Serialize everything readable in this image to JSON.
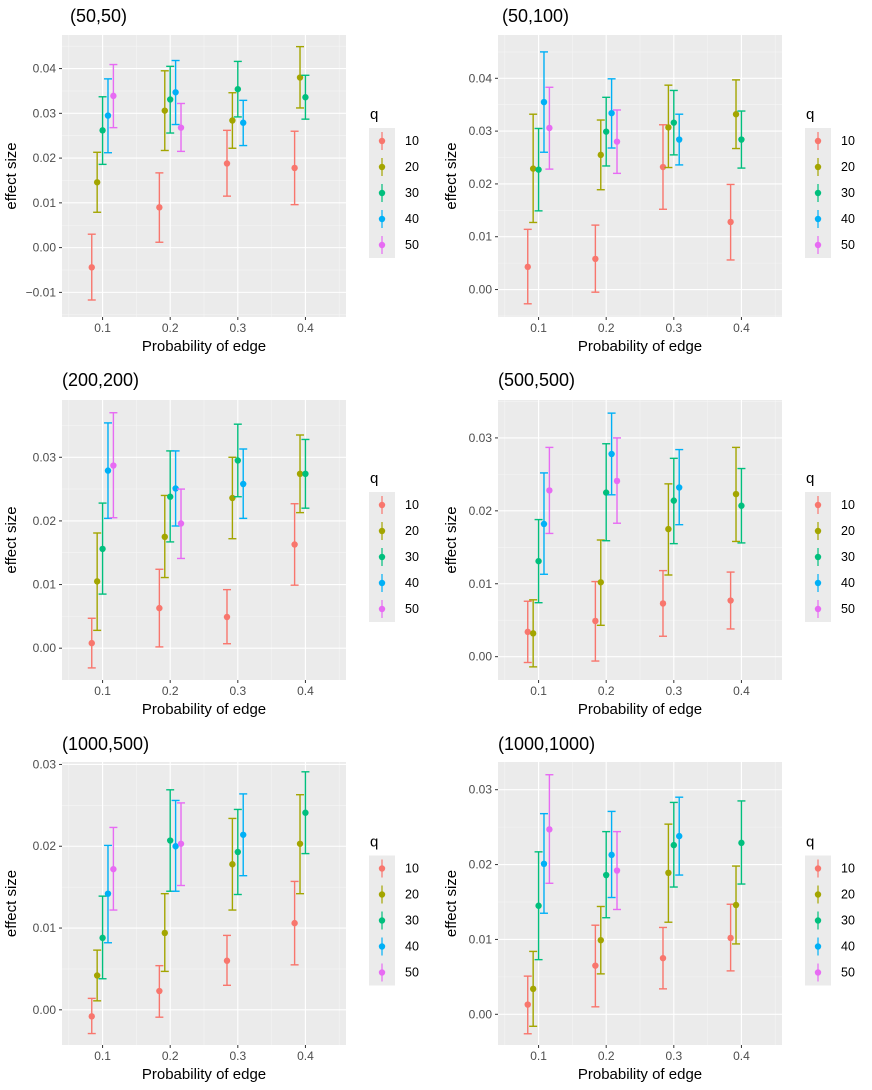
{
  "chart_data": [
    {
      "type": "errorbar-dot",
      "title": "(50,50)",
      "xlabel": "Probability of edge",
      "ylabel": "effect size",
      "x_ticks": [
        0.1,
        0.2,
        0.3,
        0.4
      ],
      "x_tick_labels": [
        "0.1",
        "0.2",
        "0.3",
        "0.4"
      ],
      "xlim": [
        0.04,
        0.46
      ],
      "ylim": [
        -0.0155,
        0.0475
      ],
      "y_ticks": [
        -0.01,
        0.0,
        0.01,
        0.02,
        0.03,
        0.04
      ],
      "y_tick_labels": [
        "−0.01",
        "0.00",
        "0.01",
        "0.02",
        "0.03",
        "0.04"
      ],
      "legend_title": "q",
      "legend_labels": [
        "10",
        "20",
        "30",
        "40",
        "50"
      ],
      "series": [
        {
          "name": "10",
          "color": "#F8766D",
          "x": [
            0.1,
            0.2,
            0.3,
            0.4
          ],
          "y": [
            -0.0044,
            0.009,
            0.0188,
            0.0178
          ],
          "lower": [
            -0.0117,
            0.0012,
            0.0115,
            0.0096
          ],
          "upper": [
            0.003,
            0.0167,
            0.0262,
            0.026
          ]
        },
        {
          "name": "20",
          "color": "#A3A500",
          "x": [
            0.1,
            0.2,
            0.3,
            0.4
          ],
          "y": [
            0.0146,
            0.0306,
            0.0284,
            0.038
          ],
          "lower": [
            0.0079,
            0.0217,
            0.0222,
            0.0312
          ],
          "upper": [
            0.0213,
            0.0395,
            0.0346,
            0.0449
          ]
        },
        {
          "name": "30",
          "color": "#00BF7D",
          "x": [
            0.1,
            0.2,
            0.3,
            0.4
          ],
          "y": [
            0.0262,
            0.0331,
            0.0354,
            0.0336
          ],
          "lower": [
            0.0186,
            0.0256,
            0.0292,
            0.0287
          ],
          "upper": [
            0.0337,
            0.0405,
            0.0416,
            0.0385
          ]
        },
        {
          "name": "40",
          "color": "#00B0F6",
          "x": [
            0.1,
            0.2,
            0.3,
            0.4
          ],
          "y": [
            0.0295,
            0.0347,
            0.0279,
            null
          ],
          "lower": [
            0.0212,
            0.0275,
            0.0228,
            null
          ],
          "upper": [
            0.0377,
            0.0418,
            0.0329,
            null
          ]
        },
        {
          "name": "50",
          "color": "#E76BF3",
          "x": [
            0.1,
            0.2,
            0.3,
            0.4
          ],
          "y": [
            0.0339,
            0.0268,
            null,
            null
          ],
          "lower": [
            0.0268,
            0.0215,
            null,
            null
          ],
          "upper": [
            0.0409,
            0.0322,
            null,
            null
          ]
        }
      ]
    },
    {
      "type": "errorbar-dot",
      "title": "(50,100)",
      "xlabel": "Probability of edge",
      "ylabel": "effect size",
      "x_ticks": [
        0.1,
        0.2,
        0.3,
        0.4
      ],
      "x_tick_labels": [
        "0.1",
        "0.2",
        "0.3",
        "0.4"
      ],
      "xlim": [
        0.04,
        0.46
      ],
      "ylim": [
        -0.0052,
        0.0482
      ],
      "y_ticks": [
        0.0,
        0.01,
        0.02,
        0.03,
        0.04
      ],
      "y_tick_labels": [
        "0.00",
        "0.01",
        "0.02",
        "0.03",
        "0.04"
      ],
      "legend_title": "q",
      "legend_labels": [
        "10",
        "20",
        "30",
        "40",
        "50"
      ],
      "series": [
        {
          "name": "10",
          "color": "#F8766D",
          "x": [
            0.1,
            0.2,
            0.3,
            0.4
          ],
          "y": [
            0.0043,
            0.0058,
            0.0232,
            0.0128
          ],
          "lower": [
            -0.0027,
            -0.0005,
            0.0152,
            0.0056
          ],
          "upper": [
            0.0114,
            0.0122,
            0.0312,
            0.0199
          ]
        },
        {
          "name": "20",
          "color": "#A3A500",
          "x": [
            0.1,
            0.2,
            0.3,
            0.4
          ],
          "y": [
            0.0229,
            0.0255,
            0.0307,
            0.0332
          ],
          "lower": [
            0.0127,
            0.0189,
            0.0231,
            0.0267
          ],
          "upper": [
            0.0332,
            0.0321,
            0.0387,
            0.0397
          ]
        },
        {
          "name": "30",
          "color": "#00BF7D",
          "x": [
            0.1,
            0.2,
            0.3,
            0.4
          ],
          "y": [
            0.0227,
            0.0299,
            0.0316,
            0.0284
          ],
          "lower": [
            0.0149,
            0.0234,
            0.0255,
            0.023
          ],
          "upper": [
            0.0305,
            0.0364,
            0.0377,
            0.0338
          ]
        },
        {
          "name": "40",
          "color": "#00B0F6",
          "x": [
            0.1,
            0.2,
            0.3,
            0.4
          ],
          "y": [
            0.0355,
            0.0334,
            0.0284,
            null
          ],
          "lower": [
            0.026,
            0.0268,
            0.0236,
            null
          ],
          "upper": [
            0.045,
            0.0399,
            0.0332,
            null
          ]
        },
        {
          "name": "50",
          "color": "#E76BF3",
          "x": [
            0.1,
            0.2,
            0.3,
            0.4
          ],
          "y": [
            0.0306,
            0.028,
            null,
            null
          ],
          "lower": [
            0.0228,
            0.022,
            null,
            null
          ],
          "upper": [
            0.0383,
            0.034,
            null,
            null
          ]
        }
      ]
    },
    {
      "type": "errorbar-dot",
      "title": "(200,200)",
      "xlabel": "Probability of edge",
      "ylabel": "effect size",
      "x_ticks": [
        0.1,
        0.2,
        0.3,
        0.4
      ],
      "x_tick_labels": [
        "0.1",
        "0.2",
        "0.3",
        "0.4"
      ],
      "xlim": [
        0.04,
        0.46
      ],
      "ylim": [
        -0.005,
        0.039
      ],
      "y_ticks": [
        0.0,
        0.01,
        0.02,
        0.03
      ],
      "y_tick_labels": [
        "0.00",
        "0.01",
        "0.02",
        "0.03"
      ],
      "legend_title": "q",
      "legend_labels": [
        "10",
        "20",
        "30",
        "40",
        "50"
      ],
      "series": [
        {
          "name": "10",
          "color": "#F8766D",
          "x": [
            0.1,
            0.2,
            0.3,
            0.4
          ],
          "y": [
            0.0008,
            0.0063,
            0.0049,
            0.0163
          ],
          "lower": [
            -0.0031,
            0.0002,
            0.0007,
            0.0099
          ],
          "upper": [
            0.0047,
            0.0124,
            0.0092,
            0.0227
          ]
        },
        {
          "name": "20",
          "color": "#A3A500",
          "x": [
            0.1,
            0.2,
            0.3,
            0.4
          ],
          "y": [
            0.0105,
            0.0175,
            0.0236,
            0.0274
          ],
          "lower": [
            0.0028,
            0.0111,
            0.0172,
            0.0213
          ],
          "upper": [
            0.0181,
            0.024,
            0.03,
            0.0335
          ]
        },
        {
          "name": "30",
          "color": "#00BF7D",
          "x": [
            0.1,
            0.2,
            0.3,
            0.4
          ],
          "y": [
            0.0156,
            0.0238,
            0.0295,
            0.0274
          ],
          "lower": [
            0.0085,
            0.0167,
            0.0238,
            0.022
          ],
          "upper": [
            0.0228,
            0.031,
            0.0352,
            0.0328
          ]
        },
        {
          "name": "40",
          "color": "#00B0F6",
          "x": [
            0.1,
            0.2,
            0.3,
            0.4
          ],
          "y": [
            0.0279,
            0.0251,
            0.0258,
            null
          ],
          "lower": [
            0.0204,
            0.0192,
            0.0204,
            null
          ],
          "upper": [
            0.0354,
            0.031,
            0.0313,
            null
          ]
        },
        {
          "name": "50",
          "color": "#E76BF3",
          "x": [
            0.1,
            0.2,
            0.3,
            0.4
          ],
          "y": [
            0.0287,
            0.0196,
            null,
            null
          ],
          "lower": [
            0.0205,
            0.0141,
            null,
            null
          ],
          "upper": [
            0.037,
            0.025,
            null,
            null
          ]
        }
      ]
    },
    {
      "type": "errorbar-dot",
      "title": "(500,500)",
      "xlabel": "Probability of edge",
      "ylabel": "effect size",
      "x_ticks": [
        0.1,
        0.2,
        0.3,
        0.4
      ],
      "x_tick_labels": [
        "0.1",
        "0.2",
        "0.3",
        "0.4"
      ],
      "xlim": [
        0.04,
        0.46
      ],
      "ylim": [
        -0.0032,
        0.0352
      ],
      "y_ticks": [
        0.0,
        0.01,
        0.02,
        0.03
      ],
      "y_tick_labels": [
        "0.00",
        "0.01",
        "0.02",
        "0.03"
      ],
      "legend_title": "q",
      "legend_labels": [
        "10",
        "20",
        "30",
        "40",
        "50"
      ],
      "series": [
        {
          "name": "10",
          "color": "#F8766D",
          "x": [
            0.1,
            0.2,
            0.3,
            0.4
          ],
          "y": [
            0.0034,
            0.0049,
            0.0073,
            0.0077
          ],
          "lower": [
            -0.0008,
            -0.0006,
            0.0028,
            0.0038
          ],
          "upper": [
            0.0076,
            0.0103,
            0.0118,
            0.0116
          ]
        },
        {
          "name": "20",
          "color": "#A3A500",
          "x": [
            0.1,
            0.2,
            0.3,
            0.4
          ],
          "y": [
            0.0032,
            0.0102,
            0.0175,
            0.0223
          ],
          "lower": [
            -0.0014,
            0.0043,
            0.0112,
            0.0158
          ],
          "upper": [
            0.0078,
            0.016,
            0.0237,
            0.0287
          ]
        },
        {
          "name": "30",
          "color": "#00BF7D",
          "x": [
            0.1,
            0.2,
            0.3,
            0.4
          ],
          "y": [
            0.0131,
            0.0225,
            0.0214,
            0.0207
          ],
          "lower": [
            0.0074,
            0.0159,
            0.0155,
            0.0156
          ],
          "upper": [
            0.0188,
            0.0292,
            0.0272,
            0.0258
          ]
        },
        {
          "name": "40",
          "color": "#00B0F6",
          "x": [
            0.1,
            0.2,
            0.3,
            0.4
          ],
          "y": [
            0.0182,
            0.0278,
            0.0232,
            null
          ],
          "lower": [
            0.0113,
            0.0222,
            0.0181,
            null
          ],
          "upper": [
            0.0252,
            0.0334,
            0.0284,
            null
          ]
        },
        {
          "name": "50",
          "color": "#E76BF3",
          "x": [
            0.1,
            0.2,
            0.3,
            0.4
          ],
          "y": [
            0.0228,
            0.0241,
            null,
            null
          ],
          "lower": [
            0.0169,
            0.0183,
            null,
            null
          ],
          "upper": [
            0.0287,
            0.03,
            null,
            null
          ]
        }
      ]
    },
    {
      "type": "errorbar-dot",
      "title": "(1000,500)",
      "xlabel": "Probability of edge",
      "ylabel": "effect size",
      "x_ticks": [
        0.1,
        0.2,
        0.3,
        0.4
      ],
      "x_tick_labels": [
        "0.1",
        "0.2",
        "0.3",
        "0.4"
      ],
      "xlim": [
        0.04,
        0.46
      ],
      "ylim": [
        -0.0043,
        0.0303
      ],
      "y_ticks": [
        0.0,
        0.01,
        0.02,
        0.03
      ],
      "y_tick_labels": [
        "0.00",
        "0.01",
        "0.02",
        "0.03"
      ],
      "legend_title": "q",
      "legend_labels": [
        "10",
        "20",
        "30",
        "40",
        "50"
      ],
      "series": [
        {
          "name": "10",
          "color": "#F8766D",
          "x": [
            0.1,
            0.2,
            0.3,
            0.4
          ],
          "y": [
            -0.0008,
            0.0023,
            0.006,
            0.0106
          ],
          "lower": [
            -0.0029,
            -0.0009,
            0.003,
            0.0055
          ],
          "upper": [
            0.0014,
            0.0054,
            0.0091,
            0.0157
          ]
        },
        {
          "name": "20",
          "color": "#A3A500",
          "x": [
            0.1,
            0.2,
            0.3,
            0.4
          ],
          "y": [
            0.0042,
            0.0094,
            0.0178,
            0.0203
          ],
          "lower": [
            0.0011,
            0.0047,
            0.0122,
            0.0142
          ],
          "upper": [
            0.0073,
            0.0142,
            0.0234,
            0.0263
          ]
        },
        {
          "name": "30",
          "color": "#00BF7D",
          "x": [
            0.1,
            0.2,
            0.3,
            0.4
          ],
          "y": [
            0.0088,
            0.0207,
            0.0193,
            0.0241
          ],
          "lower": [
            0.0038,
            0.0145,
            0.0141,
            0.0191
          ],
          "upper": [
            0.0139,
            0.0269,
            0.0245,
            0.0291
          ]
        },
        {
          "name": "40",
          "color": "#00B0F6",
          "x": [
            0.1,
            0.2,
            0.3,
            0.4
          ],
          "y": [
            0.0142,
            0.02,
            0.0214,
            null
          ],
          "lower": [
            0.0082,
            0.0145,
            0.0164,
            null
          ],
          "upper": [
            0.0201,
            0.0256,
            0.0264,
            null
          ]
        },
        {
          "name": "50",
          "color": "#E76BF3",
          "x": [
            0.1,
            0.2,
            0.3,
            0.4
          ],
          "y": [
            0.0172,
            0.0203,
            null,
            null
          ],
          "lower": [
            0.0122,
            0.0152,
            null,
            null
          ],
          "upper": [
            0.0223,
            0.0253,
            null,
            null
          ]
        }
      ]
    },
    {
      "type": "errorbar-dot",
      "title": "(1000,1000)",
      "xlabel": "Probability of edge",
      "ylabel": "effect size",
      "x_ticks": [
        0.1,
        0.2,
        0.3,
        0.4
      ],
      "x_tick_labels": [
        "0.1",
        "0.2",
        "0.3",
        "0.4"
      ],
      "xlim": [
        0.04,
        0.46
      ],
      "ylim": [
        -0.0041,
        0.0337
      ],
      "y_ticks": [
        0.0,
        0.01,
        0.02,
        0.03
      ],
      "y_tick_labels": [
        "0.00",
        "0.01",
        "0.02",
        "0.03"
      ],
      "legend_title": "q",
      "legend_labels": [
        "10",
        "20",
        "30",
        "40",
        "50"
      ],
      "series": [
        {
          "name": "10",
          "color": "#F8766D",
          "x": [
            0.1,
            0.2,
            0.3,
            0.4
          ],
          "y": [
            0.0013,
            0.0065,
            0.0075,
            0.0102
          ],
          "lower": [
            -0.0026,
            0.001,
            0.0034,
            0.0058
          ],
          "upper": [
            0.0051,
            0.0119,
            0.0116,
            0.0147
          ]
        },
        {
          "name": "20",
          "color": "#A3A500",
          "x": [
            0.1,
            0.2,
            0.3,
            0.4
          ],
          "y": [
            0.0034,
            0.0099,
            0.0189,
            0.0146
          ],
          "lower": [
            -0.0016,
            0.0054,
            0.0123,
            0.0094
          ],
          "upper": [
            0.0084,
            0.0144,
            0.0254,
            0.0198
          ]
        },
        {
          "name": "30",
          "color": "#00BF7D",
          "x": [
            0.1,
            0.2,
            0.3,
            0.4
          ],
          "y": [
            0.0145,
            0.0186,
            0.0226,
            0.0229
          ],
          "lower": [
            0.0073,
            0.0129,
            0.017,
            0.0174
          ],
          "upper": [
            0.0217,
            0.0244,
            0.0283,
            0.0285
          ]
        },
        {
          "name": "40",
          "color": "#00B0F6",
          "x": [
            0.1,
            0.2,
            0.3,
            0.4
          ],
          "y": [
            0.0201,
            0.0213,
            0.0238,
            null
          ],
          "lower": [
            0.0135,
            0.0156,
            0.0186,
            null
          ],
          "upper": [
            0.0268,
            0.0271,
            0.029,
            null
          ]
        },
        {
          "name": "50",
          "color": "#E76BF3",
          "x": [
            0.1,
            0.2,
            0.3,
            0.4
          ],
          "y": [
            0.0247,
            0.0192,
            null,
            null
          ],
          "lower": [
            0.0175,
            0.014,
            null,
            null
          ],
          "upper": [
            0.032,
            0.0244,
            null,
            null
          ]
        }
      ]
    }
  ]
}
